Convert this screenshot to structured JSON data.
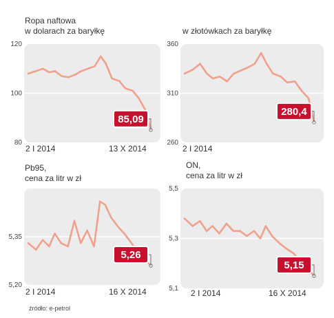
{
  "charts": [
    {
      "id": "oil-usd",
      "title": "Ropa naftowa\nw dolarach za baryłkę",
      "badge": "85,09",
      "x_start": "2 I 2014",
      "x_end": "13 X 2014",
      "y_ticks": [
        "120",
        "100",
        "80"
      ],
      "colors": {
        "line": "#f0a08c",
        "badge": "#c8102e",
        "panel": "#ececec"
      }
    },
    {
      "id": "oil-pln",
      "title": "w złotówkach za baryłkę",
      "badge": "280,4",
      "x_start": "2 I 2014",
      "x_end": "",
      "y_ticks": [
        "360",
        "310",
        "260"
      ],
      "colors": {
        "line": "#f0a08c",
        "badge": "#c8102e",
        "panel": "#ececec"
      }
    },
    {
      "id": "pb95",
      "title": "Pb95,\ncena za litr w zł",
      "badge": "5,26",
      "x_start": "2 I 2014",
      "x_end": "16 X 2014",
      "y_ticks": [
        "5,35",
        "5,20"
      ],
      "colors": {
        "line": "#f0a08c",
        "badge": "#c8102e",
        "panel": "#ececec"
      }
    },
    {
      "id": "on",
      "title": "ON,\ncena za litr w zł",
      "badge": "5,15",
      "x_start": "2 I 2014",
      "x_end": "16 X 2014",
      "y_ticks": [
        "5,5",
        "5,3",
        "5,1"
      ],
      "colors": {
        "line": "#f0a08c",
        "badge": "#c8102e",
        "panel": "#ececec"
      }
    }
  ],
  "source": "źródło: e-petrol",
  "chart_data": [
    {
      "type": "line",
      "ylim": [
        80,
        120
      ],
      "x": [
        "2014-01-02",
        "2014-01-20",
        "2014-02-05",
        "2014-02-20",
        "2014-03-05",
        "2014-03-20",
        "2014-04-05",
        "2014-04-20",
        "2014-05-05",
        "2014-05-20",
        "2014-06-05",
        "2014-06-19",
        "2014-07-01",
        "2014-07-15",
        "2014-08-01",
        "2014-08-15",
        "2014-09-01",
        "2014-09-15",
        "2014-10-01",
        "2014-10-13"
      ],
      "values": [
        108,
        109,
        110,
        108.5,
        109,
        107,
        106.5,
        107.5,
        109,
        110,
        111,
        115,
        112,
        106,
        105,
        102,
        101,
        98,
        93,
        85.09
      ]
    },
    {
      "type": "line",
      "ylim": [
        260,
        360
      ],
      "x": [
        "2014-01-02",
        "2014-01-20",
        "2014-02-05",
        "2014-02-20",
        "2014-03-05",
        "2014-03-20",
        "2014-04-05",
        "2014-04-20",
        "2014-05-05",
        "2014-05-20",
        "2014-06-05",
        "2014-06-19",
        "2014-07-01",
        "2014-07-15",
        "2014-08-01",
        "2014-08-15",
        "2014-09-01",
        "2014-09-15",
        "2014-10-01",
        "2014-10-13"
      ],
      "values": [
        330,
        334,
        340,
        330,
        325,
        327,
        322,
        330,
        333,
        336,
        340,
        351,
        340,
        330,
        327,
        321,
        322,
        313,
        305,
        280.4
      ]
    },
    {
      "type": "line",
      "ylim": [
        5.2,
        5.5
      ],
      "x": [
        "2014-01-02",
        "2014-01-20",
        "2014-02-05",
        "2014-02-20",
        "2014-03-05",
        "2014-03-20",
        "2014-04-05",
        "2014-04-20",
        "2014-05-05",
        "2014-05-20",
        "2014-06-05",
        "2014-06-19",
        "2014-07-01",
        "2014-07-15",
        "2014-08-01",
        "2014-08-15",
        "2014-09-01",
        "2014-09-15",
        "2014-10-01",
        "2014-10-16"
      ],
      "values": [
        5.33,
        5.31,
        5.34,
        5.32,
        5.36,
        5.33,
        5.32,
        5.4,
        5.33,
        5.37,
        5.32,
        5.46,
        5.45,
        5.41,
        5.38,
        5.36,
        5.33,
        5.3,
        5.28,
        5.26
      ]
    },
    {
      "type": "line",
      "ylim": [
        5.1,
        5.5
      ],
      "x": [
        "2014-01-02",
        "2014-01-20",
        "2014-02-05",
        "2014-02-20",
        "2014-03-05",
        "2014-03-20",
        "2014-04-05",
        "2014-04-20",
        "2014-05-05",
        "2014-05-20",
        "2014-06-05",
        "2014-06-19",
        "2014-07-01",
        "2014-07-15",
        "2014-08-01",
        "2014-08-15",
        "2014-09-01",
        "2014-09-15",
        "2014-10-01",
        "2014-10-16"
      ],
      "values": [
        5.38,
        5.35,
        5.37,
        5.33,
        5.35,
        5.32,
        5.36,
        5.33,
        5.33,
        5.31,
        5.33,
        5.3,
        5.35,
        5.31,
        5.28,
        5.26,
        5.24,
        5.21,
        5.18,
        5.15
      ]
    }
  ]
}
